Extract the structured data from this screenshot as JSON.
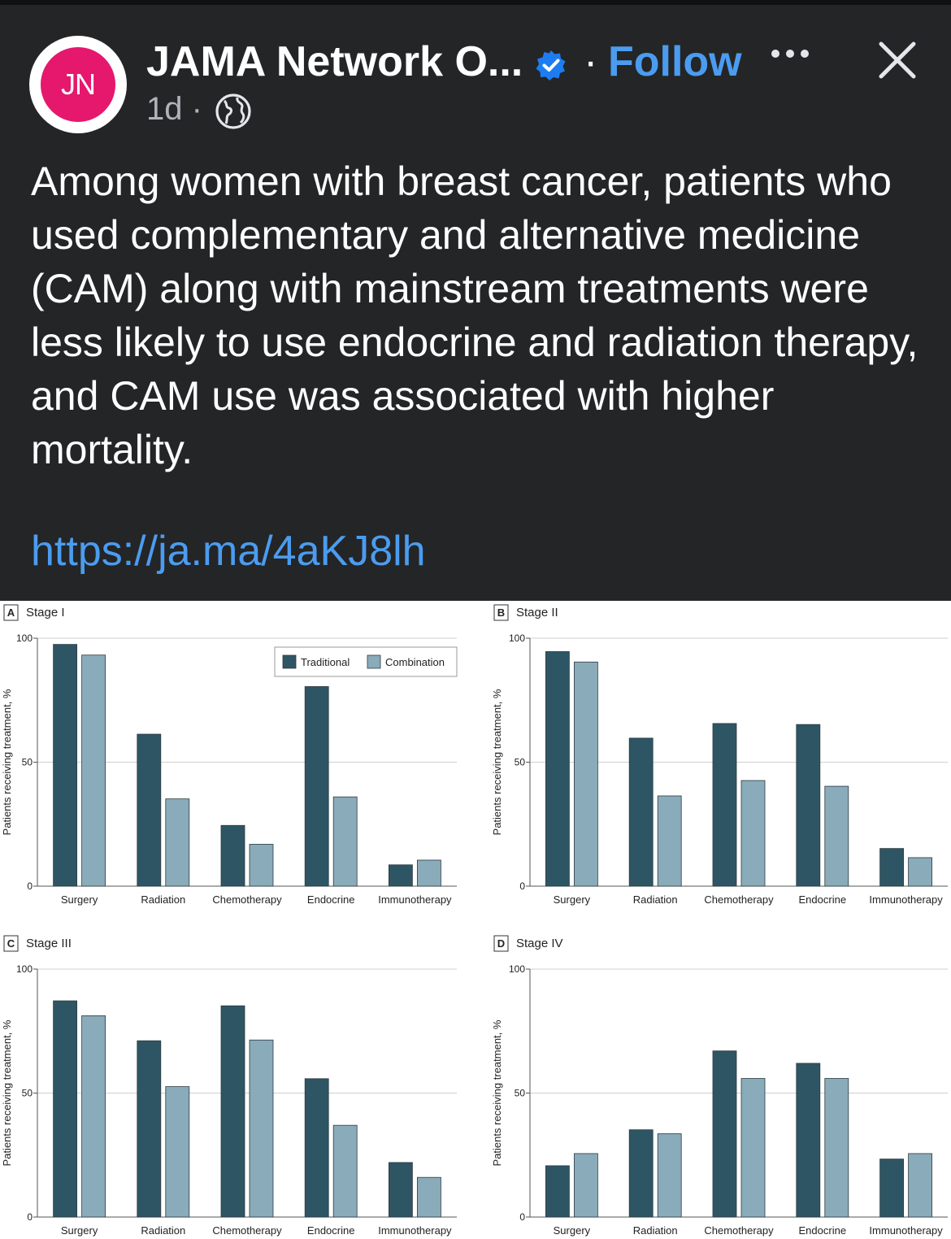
{
  "post": {
    "author": "JAMA Network O...",
    "avatar_text": "JN",
    "separator": "·",
    "follow_label": "Follow",
    "time": "1d ·",
    "text": "Among women with breast cancer, patients who used complementary and alternative medicine (CAM) along with mainstream treatments were less likely to use endocrine and radiation therapy, and CAM use was associated with higher mortality.",
    "link": "https://ja.ma/4aKJ8lh",
    "icons": [
      "verified-icon",
      "more-icon",
      "close-icon",
      "globe-icon"
    ]
  },
  "colors": {
    "traditional": "#2e5563",
    "combination": "#8aabb9",
    "link": "#4b9cf0",
    "brand": "#e5186d"
  },
  "chart_data": [
    {
      "panel": "A",
      "title": "Stage I",
      "type": "bar",
      "categories": [
        "Surgery",
        "Radiation",
        "Chemotherapy",
        "Endocrine",
        "Immunotherapy"
      ],
      "series": [
        {
          "name": "Traditional",
          "values": [
            97.5,
            61.3,
            24.5,
            80.5,
            8.6
          ]
        },
        {
          "name": "Combination",
          "values": [
            93.2,
            35.2,
            16.9,
            36.0,
            10.5
          ]
        }
      ],
      "ylabel": "Patients receiving treatment, %",
      "ylim": [
        0,
        100
      ],
      "yticks": [
        0,
        50,
        100
      ],
      "legend": "top-right"
    },
    {
      "panel": "B",
      "title": "Stage II",
      "type": "bar",
      "categories": [
        "Surgery",
        "Radiation",
        "Chemotherapy",
        "Endocrine",
        "Immunotherapy"
      ],
      "series": [
        {
          "name": "Traditional",
          "values": [
            94.6,
            59.7,
            65.6,
            65.2,
            15.2
          ]
        },
        {
          "name": "Combination",
          "values": [
            90.4,
            36.4,
            42.6,
            40.3,
            11.5
          ]
        }
      ],
      "ylabel": "Patients receiving treatment, %",
      "ylim": [
        0,
        100
      ],
      "yticks": [
        0,
        50,
        100
      ]
    },
    {
      "panel": "C",
      "title": "Stage III",
      "type": "bar",
      "categories": [
        "Surgery",
        "Radiation",
        "Chemotherapy",
        "Endocrine",
        "Immunotherapy"
      ],
      "series": [
        {
          "name": "Traditional",
          "values": [
            87.2,
            71.1,
            85.2,
            55.8,
            22.0
          ]
        },
        {
          "name": "Combination",
          "values": [
            81.2,
            52.6,
            71.4,
            37.0,
            16.0
          ]
        }
      ],
      "ylabel": "Patients receiving treatment, %",
      "ylim": [
        0,
        100
      ],
      "yticks": [
        0,
        50,
        100
      ]
    },
    {
      "panel": "D",
      "title": "Stage IV",
      "type": "bar",
      "categories": [
        "Surgery",
        "Radiation",
        "Chemotherapy",
        "Endocrine",
        "Immunotherapy"
      ],
      "series": [
        {
          "name": "Traditional",
          "values": [
            20.7,
            35.2,
            67.0,
            62.0,
            23.4
          ]
        },
        {
          "name": "Combination",
          "values": [
            25.6,
            33.6,
            55.9,
            55.9,
            25.6
          ]
        }
      ],
      "ylabel": "Patients receiving treatment, %",
      "ylim": [
        0,
        100
      ],
      "yticks": [
        0,
        50,
        100
      ]
    }
  ]
}
